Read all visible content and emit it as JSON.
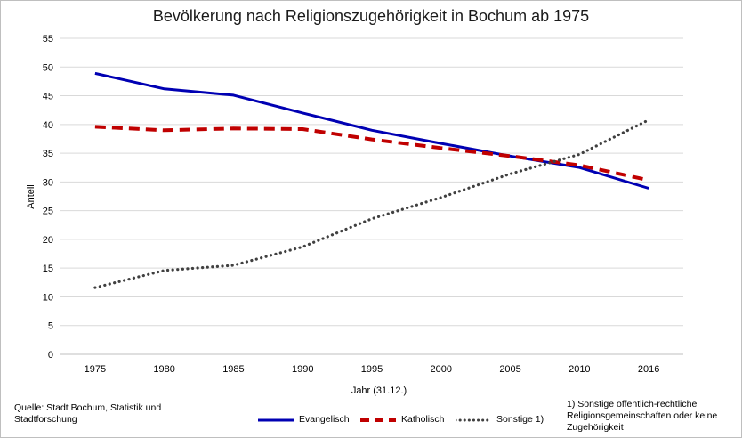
{
  "chart_data": {
    "type": "line",
    "title": "Bevölkerung nach Religionszugehörigkeit in Bochum ab 1975",
    "xlabel": "Jahr (31.12.)",
    "ylabel": "Anteil",
    "categories": [
      "1975",
      "1980",
      "1985",
      "1990",
      "1995",
      "2000",
      "2005",
      "2010",
      "2016"
    ],
    "ylim": [
      0,
      55
    ],
    "yticks": [
      0,
      5,
      10,
      15,
      20,
      25,
      30,
      35,
      40,
      45,
      50,
      55
    ],
    "grid": true,
    "legend_position": "bottom",
    "series": [
      {
        "name": "Evangelisch",
        "color": "#0000b3",
        "style": "solid",
        "values": [
          48.9,
          46.2,
          45.1,
          42.0,
          39.0,
          36.7,
          34.5,
          32.5,
          28.9
        ]
      },
      {
        "name": "Katholisch",
        "color": "#c00000",
        "style": "dashed",
        "values": [
          39.6,
          39.0,
          39.3,
          39.2,
          37.4,
          35.9,
          34.5,
          32.9,
          30.3
        ]
      },
      {
        "name": "Sonstige 1)",
        "color": "#404040",
        "style": "dotted",
        "values": [
          11.6,
          14.6,
          15.5,
          18.7,
          23.6,
          27.3,
          31.4,
          34.8,
          40.8
        ]
      }
    ]
  },
  "source": "Quelle: Stadt Bochum, Statistik und Stadtforschung",
  "footnote": "1) Sonstige öffentlich-rechtliche Religionsgemeinschaften oder keine Zugehörigkeit"
}
